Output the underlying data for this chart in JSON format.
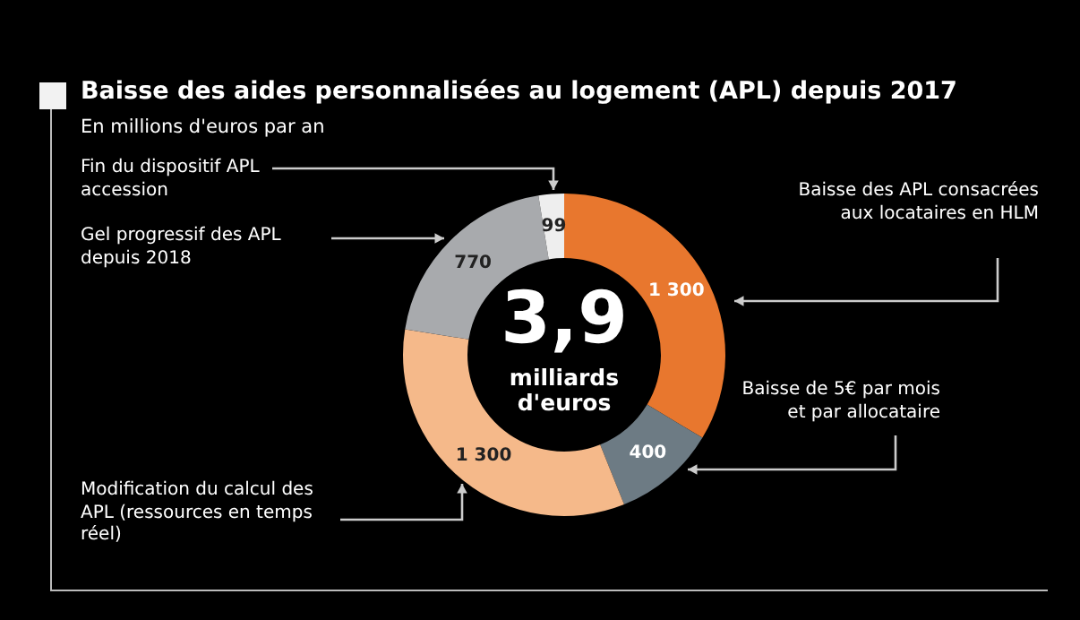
{
  "chart_data": {
    "type": "donut",
    "title": "Baisse des aides personnalisées au logement (APL) depuis 2017",
    "subtitle": "En millions d'euros par an",
    "categories": [
      "Baisse des APL consacrées aux locataires en HLM",
      "Baisse de 5€ par mois et par allocataire",
      "Modification du calcul des APL (ressources en temps réel)",
      "Gel progressif des APL depuis 2018",
      "Fin du dispositif APL accession"
    ],
    "values": [
      1300,
      400,
      1300,
      770,
      99
    ],
    "colors": [
      "#e8772e",
      "#6d7b84",
      "#f5b98a",
      "#a8aaad",
      "#eeeeee"
    ],
    "value_labels": [
      "1 300",
      "400",
      "1 300",
      "770",
      "99"
    ],
    "annotations": [
      "3,9",
      "milliards d'euros"
    ],
    "legend": false
  }
}
